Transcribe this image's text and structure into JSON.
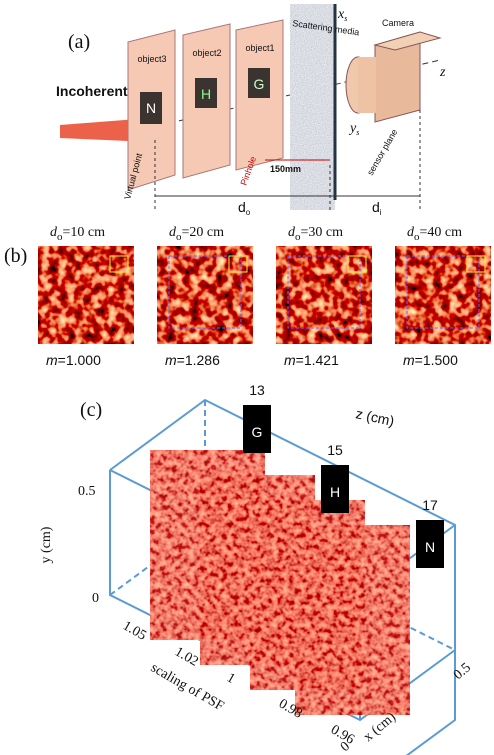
{
  "panel_a": {
    "label": "(a)",
    "objects": [
      {
        "name": "object3",
        "letter": "N"
      },
      {
        "name": "object2",
        "letter": "H"
      },
      {
        "name": "object1",
        "letter": "G"
      }
    ],
    "media": "Scattering media",
    "camera": "Camera",
    "light": "Incoherent light",
    "axis_x": "x",
    "axis_x_sub": "s",
    "axis_y": "y",
    "axis_y_sub": "s",
    "axis_z": "z",
    "distance": "150mm",
    "pinhole": "Pinhole",
    "virtual_point": "Virtual point",
    "sensor_plane": "sensor plane",
    "d_o": "d",
    "d_o_sub": "o",
    "d_i": "d",
    "d_i_sub": "i"
  },
  "panel_b": {
    "label": "(b)",
    "images": [
      {
        "d": "d",
        "d_sub": "o",
        "d_text": "=10 cm",
        "m": "m",
        "m_text": "=1.000"
      },
      {
        "d": "d",
        "d_sub": "o",
        "d_text": "=20 cm",
        "m": "m",
        "m_text": "=1.286"
      },
      {
        "d": "d",
        "d_sub": "o",
        "d_text": "=30 cm",
        "m": "m",
        "m_text": "=1.421"
      },
      {
        "d": "d",
        "d_sub": "o",
        "d_text": "=40 cm",
        "m": "m",
        "m_text": "=1.500"
      }
    ]
  },
  "panel_c": {
    "label": "(c)",
    "tags": [
      {
        "z": "13",
        "letter": "G"
      },
      {
        "z": "15",
        "letter": "H"
      },
      {
        "z": "17",
        "letter": "N"
      }
    ],
    "z_label": "z (cm)",
    "y_ticks": [
      "0.5",
      "0"
    ],
    "y_label": "y (cm)",
    "scale_ticks": [
      "1.05",
      "1.02",
      "1",
      "0.98",
      "0.96"
    ],
    "scale_label": "scaling of PSF",
    "x_ticks": [
      "0",
      "0.5"
    ],
    "x_label": "x (cm)"
  }
}
